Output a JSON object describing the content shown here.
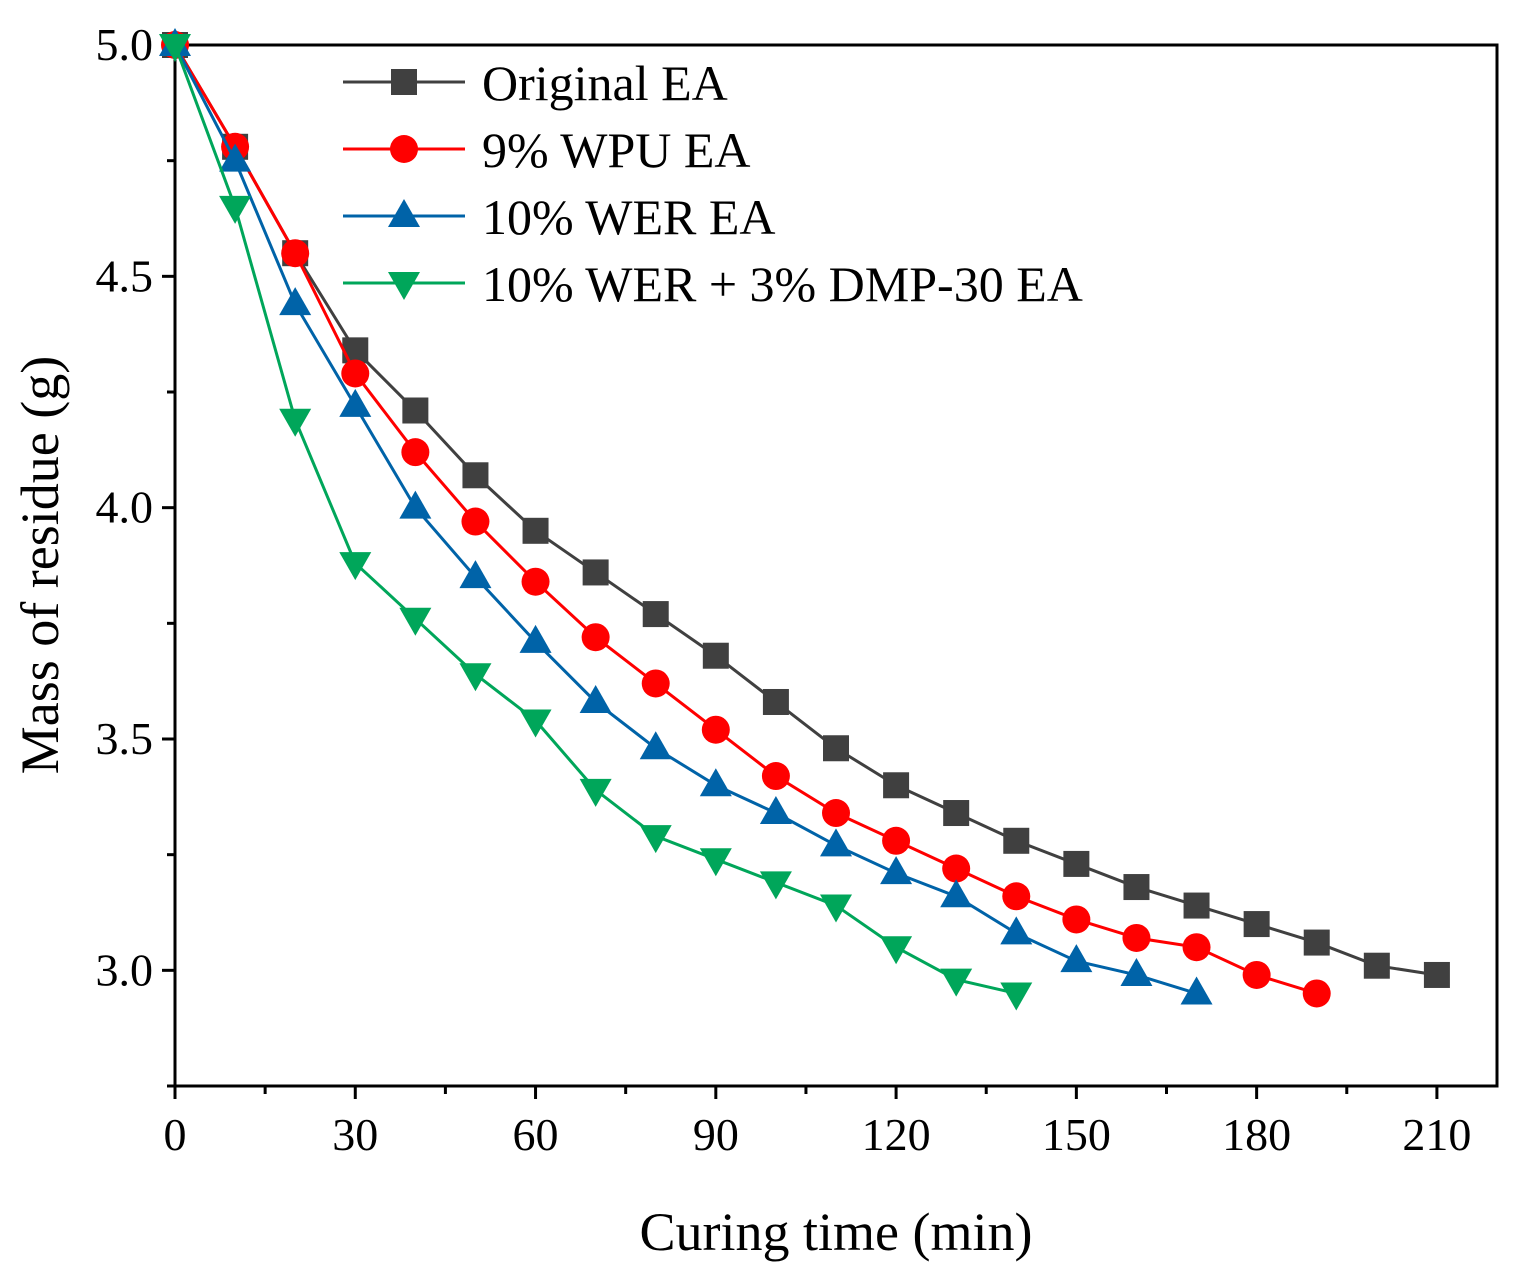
{
  "chart_data": {
    "type": "line",
    "title": "",
    "xlabel": "Curing time (min)",
    "ylabel": "Mass of residue (g)",
    "xlim": [
      0,
      220
    ],
    "ylim": [
      2.75,
      5.0
    ],
    "xticks": [
      0,
      30,
      60,
      90,
      120,
      150,
      180,
      210
    ],
    "xtick_labels": [
      "0",
      "30",
      "60",
      "90",
      "120",
      "150",
      "180",
      "210"
    ],
    "yticks": [
      3.0,
      3.5,
      4.0,
      4.5,
      5.0
    ],
    "ytick_labels": [
      "3.0",
      "3.5",
      "4.0",
      "4.5",
      "5.0"
    ],
    "grid": false,
    "legend_position": "top-left",
    "series": [
      {
        "name": "Original EA",
        "color": "#404040",
        "marker": "square",
        "x": [
          0,
          10,
          20,
          30,
          40,
          50,
          60,
          70,
          80,
          90,
          100,
          110,
          120,
          130,
          140,
          150,
          160,
          170,
          180,
          190,
          200,
          210
        ],
        "values": [
          5.0,
          4.78,
          4.55,
          4.34,
          4.21,
          4.07,
          3.95,
          3.86,
          3.77,
          3.68,
          3.58,
          3.48,
          3.4,
          3.34,
          3.28,
          3.23,
          3.18,
          3.14,
          3.1,
          3.06,
          3.01,
          2.99
        ]
      },
      {
        "name": "9% WPU EA",
        "color": "#ff0000",
        "marker": "circle",
        "x": [
          0,
          10,
          20,
          30,
          40,
          50,
          60,
          70,
          80,
          90,
          100,
          110,
          120,
          130,
          140,
          150,
          160,
          170,
          180,
          190
        ],
        "values": [
          5.0,
          4.78,
          4.55,
          4.29,
          4.12,
          3.97,
          3.84,
          3.72,
          3.62,
          3.52,
          3.42,
          3.34,
          3.28,
          3.22,
          3.16,
          3.11,
          3.07,
          3.05,
          2.99,
          2.95
        ]
      },
      {
        "name": "10% WER EA",
        "color": "#0063a8",
        "marker": "triangle-up",
        "x": [
          0,
          10,
          20,
          30,
          40,
          50,
          60,
          70,
          80,
          90,
          100,
          110,
          120,
          130,
          140,
          150,
          160,
          170
        ],
        "values": [
          5.0,
          4.75,
          4.44,
          4.22,
          4.0,
          3.85,
          3.71,
          3.58,
          3.48,
          3.4,
          3.34,
          3.27,
          3.21,
          3.16,
          3.08,
          3.02,
          2.99,
          2.95
        ]
      },
      {
        "name": "10% WER + 3% DMP-30 EA",
        "color": "#00a65a",
        "marker": "triangle-down",
        "x": [
          0,
          10,
          20,
          30,
          40,
          50,
          60,
          70,
          80,
          90,
          100,
          110,
          120,
          130,
          140
        ],
        "values": [
          5.0,
          4.65,
          4.19,
          3.88,
          3.76,
          3.64,
          3.54,
          3.39,
          3.29,
          3.24,
          3.19,
          3.14,
          3.05,
          2.98,
          2.95
        ]
      }
    ]
  }
}
